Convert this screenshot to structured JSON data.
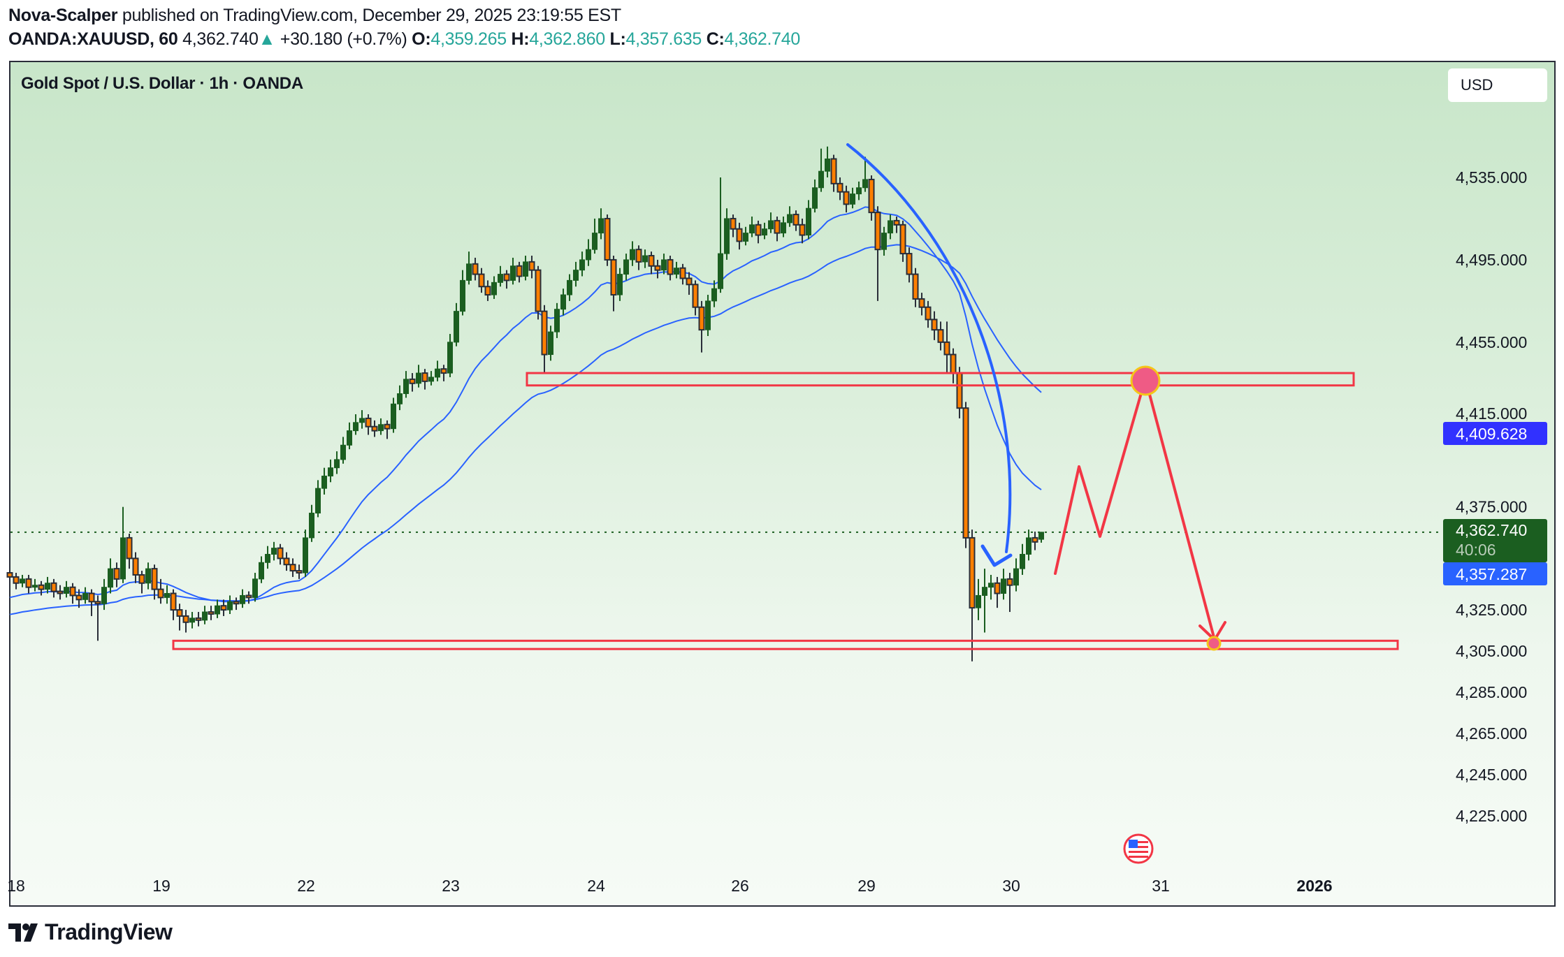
{
  "header": {
    "author": "Nova-Scalper",
    "published_text": " published on TradingView.com, December 29, 2025 23:19:55 EST",
    "symbol": "OANDA:XAUUSD, 60",
    "last_price": "4,362.740",
    "change": "+30.180 (+0.7%)",
    "o_label": "O:",
    "o_value": "4,359.265",
    "h_label": "H:",
    "h_value": "4,362.860",
    "l_label": "L:",
    "l_value": "4,357.635",
    "c_label": "C:",
    "c_value": "4,362.740"
  },
  "chart_title": "Gold Spot / U.S. Dollar · 1h · OANDA",
  "currency_button": "USD",
  "price_labels": {
    "ema_slow": "4,409.628",
    "current": "4,362.740",
    "countdown": "40:06",
    "ema_fast": "4,357.287"
  },
  "colors": {
    "bull": "#1b5e20",
    "bear": "#ff7f00",
    "wick": "#2a2e39",
    "ema": "#2962ff",
    "drawing_blue": "#2962ff",
    "drawing_red": "#f23645",
    "slow_label": "#3131ff",
    "fast_label": "#2962ff",
    "current_label": "#1b5e20"
  },
  "footer": {
    "logo_text": "TradingView"
  },
  "chart_data": {
    "type": "candlestick",
    "title": "Gold Spot / U.S. Dollar · 1h · OANDA",
    "price_axis_ticks": [
      "4,535.000",
      "4,495.000",
      "4,455.000",
      "4,415.000",
      "4,375.000",
      "4,325.000",
      "4,305.000",
      "4,285.000",
      "4,265.000",
      "4,245.000",
      "4,225.000"
    ],
    "price_axis_tick_values": [
      4535,
      4495,
      4455,
      4415,
      4375,
      4325,
      4305,
      4285,
      4265,
      4245,
      4225
    ],
    "time_axis_ticks": [
      "18",
      "19",
      "22",
      "23",
      "24",
      "26",
      "29",
      "30",
      "31",
      "2026"
    ],
    "grid": false,
    "current_price": 4362.74,
    "ema_last_values": [
      4357.287,
      4409.628
    ],
    "resistance_zone": [
      4434,
      4440
    ],
    "support_zone": [
      4306,
      4310
    ],
    "ohlc": [
      [
        4343,
        4345,
        4338,
        4341
      ],
      [
        4341,
        4343,
        4335,
        4338
      ],
      [
        4338,
        4342,
        4336,
        4340
      ],
      [
        4340,
        4342,
        4333,
        4336
      ],
      [
        4336,
        4340,
        4334,
        4337
      ],
      [
        4337,
        4339,
        4332,
        4335
      ],
      [
        4335,
        4341,
        4333,
        4338
      ],
      [
        4338,
        4340,
        4331,
        4334
      ],
      [
        4334,
        4337,
        4330,
        4333
      ],
      [
        4333,
        4339,
        4331,
        4336
      ],
      [
        4336,
        4338,
        4328,
        4332
      ],
      [
        4332,
        4335,
        4326,
        4330
      ],
      [
        4330,
        4336,
        4328,
        4333
      ],
      [
        4333,
        4335,
        4322,
        4329
      ],
      [
        4329,
        4332,
        4310,
        4328
      ],
      [
        4328,
        4340,
        4325,
        4336
      ],
      [
        4336,
        4350,
        4333,
        4345
      ],
      [
        4345,
        4348,
        4336,
        4340
      ],
      [
        4340,
        4375,
        4338,
        4360
      ],
      [
        4360,
        4362,
        4345,
        4350
      ],
      [
        4350,
        4353,
        4338,
        4342
      ],
      [
        4342,
        4344,
        4333,
        4338
      ],
      [
        4338,
        4348,
        4335,
        4345
      ],
      [
        4345,
        4347,
        4330,
        4335
      ],
      [
        4335,
        4340,
        4328,
        4331
      ],
      [
        4331,
        4337,
        4328,
        4333
      ],
      [
        4333,
        4335,
        4320,
        4325
      ],
      [
        4325,
        4328,
        4315,
        4322
      ],
      [
        4322,
        4325,
        4314,
        4319
      ],
      [
        4319,
        4324,
        4316,
        4321
      ],
      [
        4321,
        4324,
        4317,
        4320
      ],
      [
        4320,
        4327,
        4318,
        4324
      ],
      [
        4324,
        4327,
        4320,
        4323
      ],
      [
        4323,
        4330,
        4321,
        4327
      ],
      [
        4327,
        4330,
        4322,
        4325
      ],
      [
        4325,
        4332,
        4323,
        4329
      ],
      [
        4329,
        4331,
        4325,
        4328
      ],
      [
        4328,
        4335,
        4326,
        4332
      ],
      [
        4332,
        4334,
        4328,
        4331
      ],
      [
        4331,
        4343,
        4329,
        4340
      ],
      [
        4340,
        4351,
        4338,
        4348
      ],
      [
        4348,
        4356,
        4345,
        4352
      ],
      [
        4352,
        4358,
        4349,
        4355
      ],
      [
        4355,
        4357,
        4347,
        4350
      ],
      [
        4350,
        4353,
        4344,
        4347
      ],
      [
        4347,
        4350,
        4341,
        4344
      ],
      [
        4344,
        4347,
        4340,
        4343
      ],
      [
        4343,
        4364,
        4341,
        4360
      ],
      [
        4360,
        4376,
        4358,
        4372
      ],
      [
        4372,
        4388,
        4370,
        4384
      ],
      [
        4384,
        4394,
        4381,
        4390
      ],
      [
        4390,
        4398,
        4387,
        4394
      ],
      [
        4394,
        4402,
        4391,
        4398
      ],
      [
        4398,
        4409,
        4396,
        4405
      ],
      [
        4405,
        4416,
        4403,
        4412
      ],
      [
        4412,
        4420,
        4410,
        4416
      ],
      [
        4416,
        4422,
        4413,
        4418
      ],
      [
        4418,
        4420,
        4410,
        4414
      ],
      [
        4414,
        4417,
        4409,
        4412
      ],
      [
        4412,
        4418,
        4410,
        4415
      ],
      [
        4415,
        4417,
        4408,
        4413
      ],
      [
        4413,
        4428,
        4411,
        4425
      ],
      [
        4425,
        4434,
        4422,
        4430
      ],
      [
        4430,
        4441,
        4428,
        4437
      ],
      [
        4437,
        4440,
        4431,
        4435
      ],
      [
        4435,
        4444,
        4433,
        4440
      ],
      [
        4440,
        4442,
        4432,
        4436
      ],
      [
        4436,
        4441,
        4434,
        4438
      ],
      [
        4438,
        4446,
        4436,
        4442
      ],
      [
        4442,
        4444,
        4436,
        4440
      ],
      [
        4440,
        4459,
        4438,
        4455
      ],
      [
        4455,
        4474,
        4453,
        4470
      ],
      [
        4470,
        4490,
        4468,
        4485
      ],
      [
        4485,
        4499,
        4483,
        4493
      ],
      [
        4493,
        4496,
        4485,
        4488
      ],
      [
        4488,
        4491,
        4479,
        4482
      ],
      [
        4482,
        4485,
        4475,
        4478
      ],
      [
        4478,
        4487,
        4476,
        4484
      ],
      [
        4484,
        4492,
        4482,
        4488
      ],
      [
        4488,
        4490,
        4481,
        4485
      ],
      [
        4485,
        4496,
        4483,
        4492
      ],
      [
        4492,
        4494,
        4484,
        4487
      ],
      [
        4487,
        4497,
        4485,
        4494
      ],
      [
        4494,
        4497,
        4486,
        4490
      ],
      [
        4490,
        4492,
        4466,
        4470
      ],
      [
        4470,
        4473,
        4440,
        4449
      ],
      [
        4449,
        4463,
        4446,
        4460
      ],
      [
        4460,
        4474,
        4457,
        4471
      ],
      [
        4471,
        4481,
        4468,
        4478
      ],
      [
        4478,
        4488,
        4475,
        4485
      ],
      [
        4485,
        4494,
        4482,
        4490
      ],
      [
        4490,
        4499,
        4487,
        4495
      ],
      [
        4495,
        4505,
        4492,
        4500
      ],
      [
        4500,
        4515,
        4498,
        4508
      ],
      [
        4508,
        4520,
        4505,
        4515
      ],
      [
        4515,
        4517,
        4492,
        4495
      ],
      [
        4495,
        4497,
        4470,
        4478
      ],
      [
        4478,
        4491,
        4475,
        4488
      ],
      [
        4488,
        4498,
        4485,
        4495
      ],
      [
        4495,
        4504,
        4492,
        4500
      ],
      [
        4500,
        4502,
        4490,
        4494
      ],
      [
        4494,
        4500,
        4491,
        4497
      ],
      [
        4497,
        4499,
        4488,
        4492
      ],
      [
        4492,
        4495,
        4486,
        4490
      ],
      [
        4490,
        4498,
        4488,
        4495
      ],
      [
        4495,
        4497,
        4485,
        4488
      ],
      [
        4488,
        4494,
        4486,
        4491
      ],
      [
        4491,
        4493,
        4483,
        4486
      ],
      [
        4486,
        4489,
        4478,
        4483
      ],
      [
        4483,
        4485,
        4468,
        4472
      ],
      [
        4472,
        4475,
        4450,
        4461
      ],
      [
        4461,
        4478,
        4458,
        4475
      ],
      [
        4475,
        4485,
        4472,
        4481
      ],
      [
        4481,
        4535,
        4479,
        4498
      ],
      [
        4498,
        4520,
        4495,
        4515
      ],
      [
        4515,
        4517,
        4506,
        4510
      ],
      [
        4510,
        4513,
        4500,
        4504
      ],
      [
        4504,
        4511,
        4502,
        4508
      ],
      [
        4508,
        4516,
        4506,
        4512
      ],
      [
        4512,
        4514,
        4503,
        4507
      ],
      [
        4507,
        4513,
        4505,
        4510
      ],
      [
        4510,
        4518,
        4508,
        4514
      ],
      [
        4514,
        4516,
        4504,
        4508
      ],
      [
        4508,
        4516,
        4506,
        4513
      ],
      [
        4513,
        4521,
        4511,
        4517
      ],
      [
        4517,
        4519,
        4509,
        4512
      ],
      [
        4512,
        4515,
        4503,
        4507
      ],
      [
        4507,
        4524,
        4505,
        4520
      ],
      [
        4520,
        4534,
        4518,
        4530
      ],
      [
        4530,
        4549,
        4528,
        4538
      ],
      [
        4538,
        4550,
        4535,
        4544
      ],
      [
        4544,
        4546,
        4528,
        4532
      ],
      [
        4532,
        4535,
        4524,
        4528
      ],
      [
        4528,
        4531,
        4518,
        4522
      ],
      [
        4522,
        4530,
        4520,
        4527
      ],
      [
        4527,
        4533,
        4524,
        4530
      ],
      [
        4530,
        4545,
        4528,
        4534
      ],
      [
        4534,
        4536,
        4514,
        4518
      ],
      [
        4518,
        4521,
        4475,
        4500
      ],
      [
        4500,
        4511,
        4497,
        4508
      ],
      [
        4508,
        4517,
        4505,
        4514
      ],
      [
        4514,
        4516,
        4508,
        4512
      ],
      [
        4512,
        4514,
        4494,
        4498
      ],
      [
        4498,
        4501,
        4484,
        4488
      ],
      [
        4488,
        4491,
        4472,
        4476
      ],
      [
        4476,
        4479,
        4468,
        4472
      ],
      [
        4472,
        4475,
        4462,
        4466
      ],
      [
        4466,
        4470,
        4456,
        4461
      ],
      [
        4461,
        4465,
        4451,
        4455
      ],
      [
        4455,
        4465,
        4440,
        4449
      ],
      [
        4449,
        4452,
        4435,
        4440
      ],
      [
        4440,
        4443,
        4418,
        4423
      ],
      [
        4423,
        4426,
        4355,
        4360
      ],
      [
        4360,
        4364,
        4300,
        4326
      ],
      [
        4326,
        4340,
        4320,
        4332
      ],
      [
        4332,
        4345,
        4314,
        4336
      ],
      [
        4336,
        4342,
        4330,
        4338
      ],
      [
        4338,
        4341,
        4326,
        4333
      ],
      [
        4333,
        4345,
        4330,
        4340
      ],
      [
        4340,
        4343,
        4324,
        4337
      ],
      [
        4337,
        4350,
        4334,
        4345
      ],
      [
        4345,
        4357,
        4342,
        4352
      ],
      [
        4352,
        4364,
        4349,
        4360
      ],
      [
        4360,
        4363,
        4354,
        4358
      ],
      [
        4359.265,
        4362.86,
        4357.635,
        4362.74
      ]
    ]
  }
}
